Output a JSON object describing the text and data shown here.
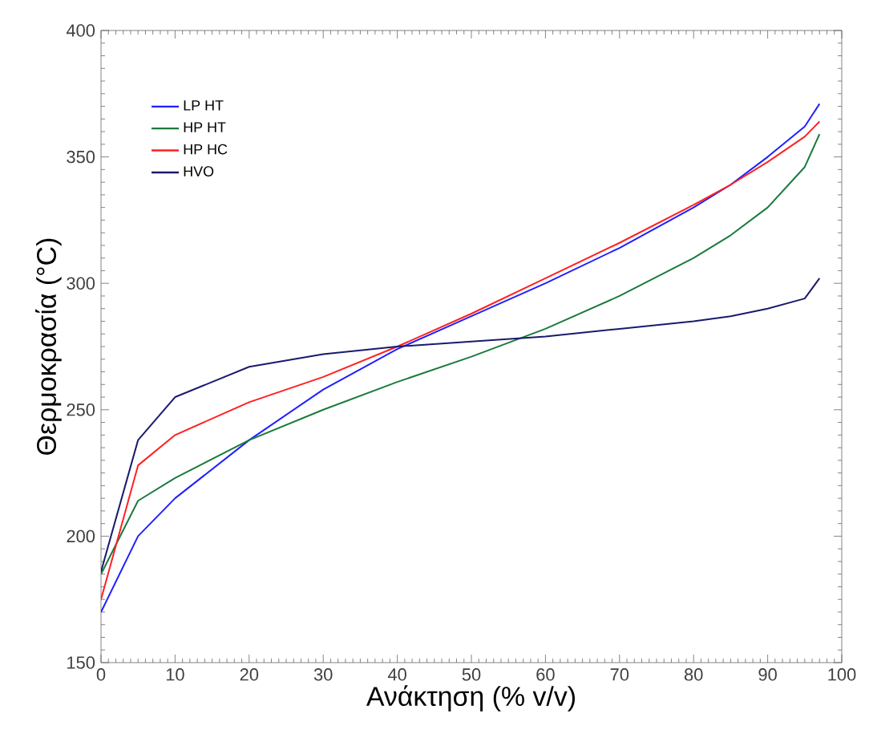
{
  "chart_data": {
    "type": "line",
    "xlabel": "Ανάκτηση (% v/v)",
    "ylabel": "Θερμοκρασία (°C)",
    "xlim": [
      0,
      100
    ],
    "ylim": [
      150,
      400
    ],
    "xticks": [
      0,
      10,
      20,
      30,
      40,
      50,
      60,
      70,
      80,
      90,
      100
    ],
    "yticks": [
      150,
      200,
      250,
      300,
      350,
      400
    ],
    "legend": "top left",
    "grid": false,
    "marker": "none",
    "line_style": "solid",
    "x": [
      0,
      5,
      10,
      20,
      30,
      40,
      50,
      60,
      70,
      80,
      85,
      90,
      95,
      97
    ],
    "series": [
      {
        "name": "LP HT",
        "color": "#1f1fff",
        "values": [
          170,
          200,
          215,
          238,
          258,
          274,
          287,
          300,
          314,
          330,
          339,
          350,
          362,
          371
        ]
      },
      {
        "name": "HP HT",
        "color": "#1a7a3e",
        "values": [
          185,
          214,
          223,
          238,
          250,
          261,
          271,
          282,
          295,
          310,
          319,
          330,
          346,
          359
        ]
      },
      {
        "name": "HP HC",
        "color": "#ff2020",
        "values": [
          175,
          228,
          240,
          253,
          263,
          275,
          288,
          302,
          316,
          331,
          339,
          348,
          358,
          364
        ]
      },
      {
        "name": "HVO",
        "color": "#1a1a6e",
        "values": [
          186,
          238,
          255,
          267,
          272,
          275,
          277,
          279,
          282,
          285,
          287,
          290,
          294,
          302
        ]
      }
    ]
  }
}
